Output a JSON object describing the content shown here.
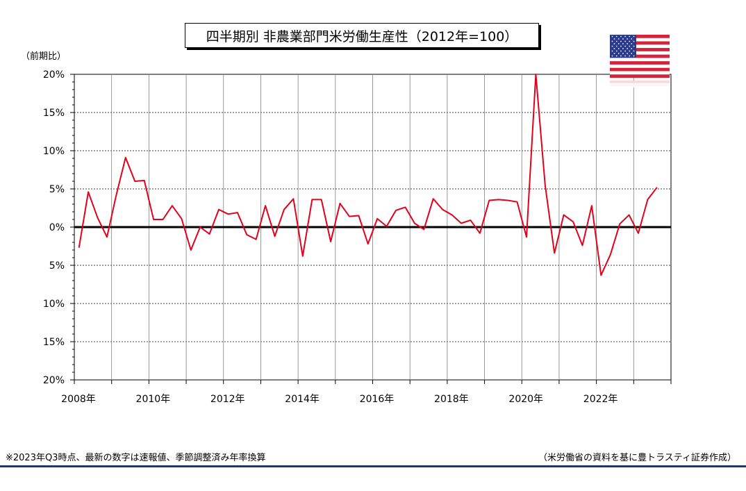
{
  "title": "四半期別 非農業部門米労働生産性（2012年=100）",
  "unit_label": "（前期比）",
  "footnote": "※2023年Q3時点、最新の数字は速報値、季節調整済み年率換算",
  "source": "（米労働省の資料を基に豊トラスティ証券作成）",
  "flag_icon": "us-flag-icon",
  "chart_data": {
    "type": "line",
    "title": "四半期別 非農業部門米労働生産性（2012年=100）",
    "ylabel": "（前期比）",
    "xlabel": "",
    "y_tick_labels": [
      "20%",
      "15%",
      "10%",
      "5%",
      "0%",
      "5%",
      "10%",
      "15%",
      "20%"
    ],
    "x_tick_labels": [
      "2008年",
      "2010年",
      "2012年",
      "2014年",
      "2016年",
      "2018年",
      "2020年",
      "2022年"
    ],
    "ylim": [
      -20,
      20
    ],
    "x_start": "2008-Q1",
    "grid": true,
    "series_color": "#e3001b",
    "series": [
      {
        "values": [
          -2.7,
          4.6,
          1.2,
          -1.3,
          4.2,
          9.1,
          6.0,
          6.1,
          1.0,
          1.0,
          2.8,
          1.1,
          -3.0,
          0.0,
          -0.9,
          2.3,
          1.7,
          1.9,
          -1.0,
          -1.6,
          2.8,
          -1.2,
          2.3,
          3.7,
          -3.8,
          3.6,
          3.6,
          -1.9,
          3.1,
          1.4,
          1.5,
          -2.2,
          1.1,
          0.1,
          2.2,
          2.6,
          0.5,
          -0.3,
          3.7,
          2.3,
          1.6,
          0.5,
          0.9,
          -0.8,
          3.5,
          3.6,
          3.5,
          3.3,
          -1.3,
          20.0,
          5.5,
          -3.4,
          1.6,
          0.7,
          -2.4,
          2.8,
          -6.3,
          -3.6,
          0.4,
          1.6,
          -0.8,
          3.6,
          5.2
        ]
      }
    ]
  }
}
